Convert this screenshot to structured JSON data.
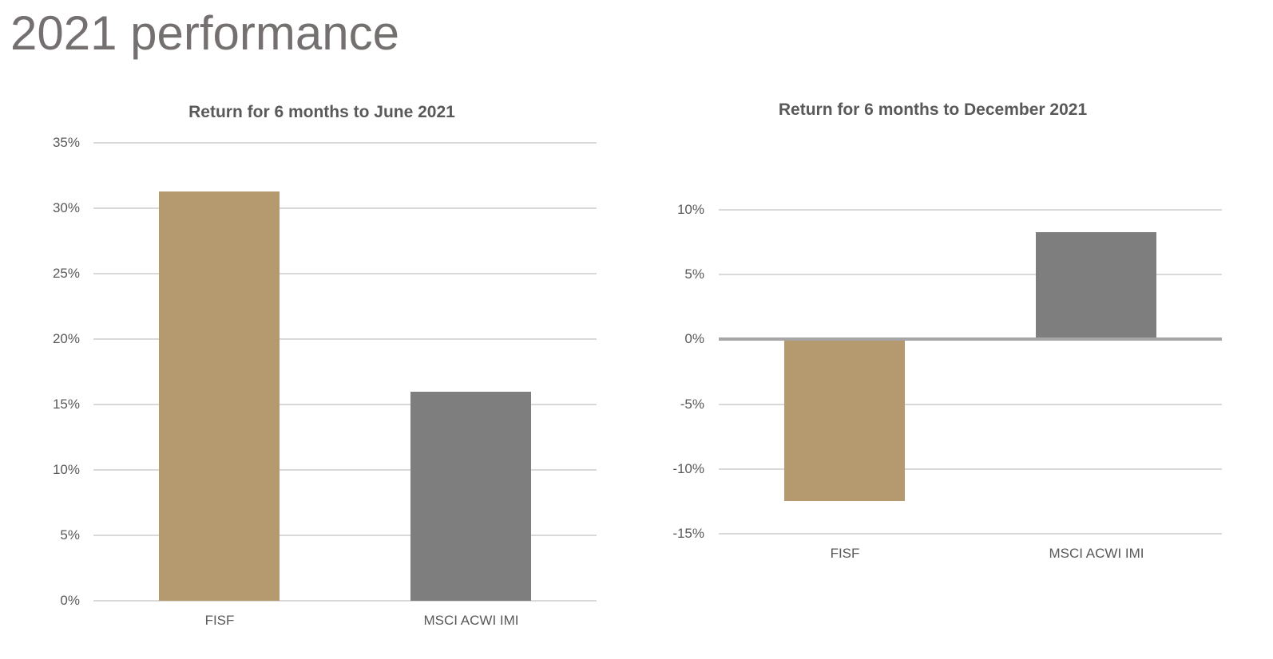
{
  "page_title": "2021 performance",
  "colors": {
    "fisf_bar": "#B49A6E",
    "benchmark_bar": "#7E7E7E",
    "page_title_text": "#757070",
    "chart_text": "#595959",
    "gridline": "#D9D9D9",
    "zero_axis_line": "#A6A6A6"
  },
  "chart_data": [
    {
      "type": "bar",
      "title": "Return for 6 months to June 2021",
      "categories": [
        "FISF",
        "MSCI ACWI IMI"
      ],
      "values": [
        31.3,
        16.0
      ],
      "bar_colors": [
        "#B49A6E",
        "#7E7E7E"
      ],
      "ylim": [
        0,
        35
      ],
      "ytick_step": 5,
      "yticks": [
        {
          "v": 35,
          "label": "35%"
        },
        {
          "v": 30,
          "label": "30%"
        },
        {
          "v": 25,
          "label": "25%"
        },
        {
          "v": 20,
          "label": "20%"
        },
        {
          "v": 15,
          "label": "15%"
        },
        {
          "v": 10,
          "label": "10%"
        },
        {
          "v": 5,
          "label": "5%"
        },
        {
          "v": 0,
          "label": "0%"
        }
      ],
      "grid": true,
      "legend": "none",
      "xlabel": "",
      "ylabel": ""
    },
    {
      "type": "bar",
      "title": "Return for 6 months to December 2021",
      "categories": [
        "FISF",
        "MSCI ACWI IMI"
      ],
      "values": [
        -12.5,
        8.3
      ],
      "bar_colors": [
        "#B49A6E",
        "#7E7E7E"
      ],
      "ylim": [
        -15,
        10
      ],
      "ytick_step": 5,
      "yticks": [
        {
          "v": 10,
          "label": "10%"
        },
        {
          "v": 5,
          "label": "5%"
        },
        {
          "v": 0,
          "label": "0%"
        },
        {
          "v": -5,
          "label": "-5%"
        },
        {
          "v": -10,
          "label": "-10%"
        },
        {
          "v": -15,
          "label": "-15%"
        }
      ],
      "grid": true,
      "legend": "none",
      "xlabel": "",
      "ylabel": ""
    }
  ]
}
